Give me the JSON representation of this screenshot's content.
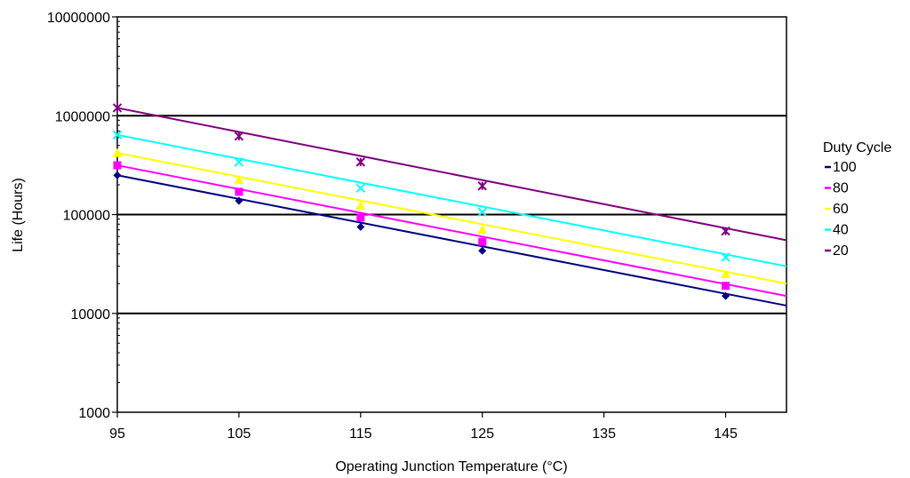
{
  "chart_data": {
    "type": "line",
    "xlabel": "Operating Junction Temperature (°C)",
    "ylabel": "Life (Hours)",
    "xlim": [
      95,
      150
    ],
    "ylim": [
      1000,
      10000000
    ],
    "yscale": "log",
    "grid": "major y-gridlines",
    "x_ticks": [
      "95",
      "105",
      "115",
      "125",
      "135",
      "145"
    ],
    "y_ticks": [
      "1000",
      "10000",
      "100000",
      "1000000",
      "10000000"
    ],
    "legend": {
      "title": "Duty Cycle",
      "placement": "right"
    },
    "series": [
      {
        "name": "100",
        "color": "#000080",
        "marker": "diamond",
        "x": [
          95,
          105,
          115,
          125,
          145
        ],
        "values": [
          250000,
          138000,
          75000,
          43000,
          15000
        ],
        "fit_end": [
          150,
          12000
        ]
      },
      {
        "name": "80",
        "color": "#FF00FF",
        "marker": "square",
        "x": [
          95,
          105,
          115,
          125,
          145
        ],
        "values": [
          315000,
          170000,
          93000,
          53000,
          19000
        ],
        "fit_end": [
          150,
          15000
        ]
      },
      {
        "name": "60",
        "color": "#FFFF00",
        "marker": "triangle",
        "x": [
          95,
          105,
          115,
          125,
          145
        ],
        "values": [
          420000,
          225000,
          123000,
          70000,
          25000
        ],
        "fit_end": [
          150,
          20000
        ]
      },
      {
        "name": "40",
        "color": "#00FFFF",
        "marker": "x",
        "x": [
          95,
          105,
          115,
          125,
          145
        ],
        "values": [
          640000,
          340000,
          185000,
          106000,
          37000
        ],
        "fit_end": [
          150,
          30000
        ]
      },
      {
        "name": "20",
        "color": "#800080",
        "marker": "star",
        "x": [
          95,
          105,
          115,
          125,
          145
        ],
        "values": [
          1200000,
          620000,
          340000,
          195000,
          68000
        ],
        "fit_end": [
          150,
          55000
        ]
      }
    ]
  }
}
